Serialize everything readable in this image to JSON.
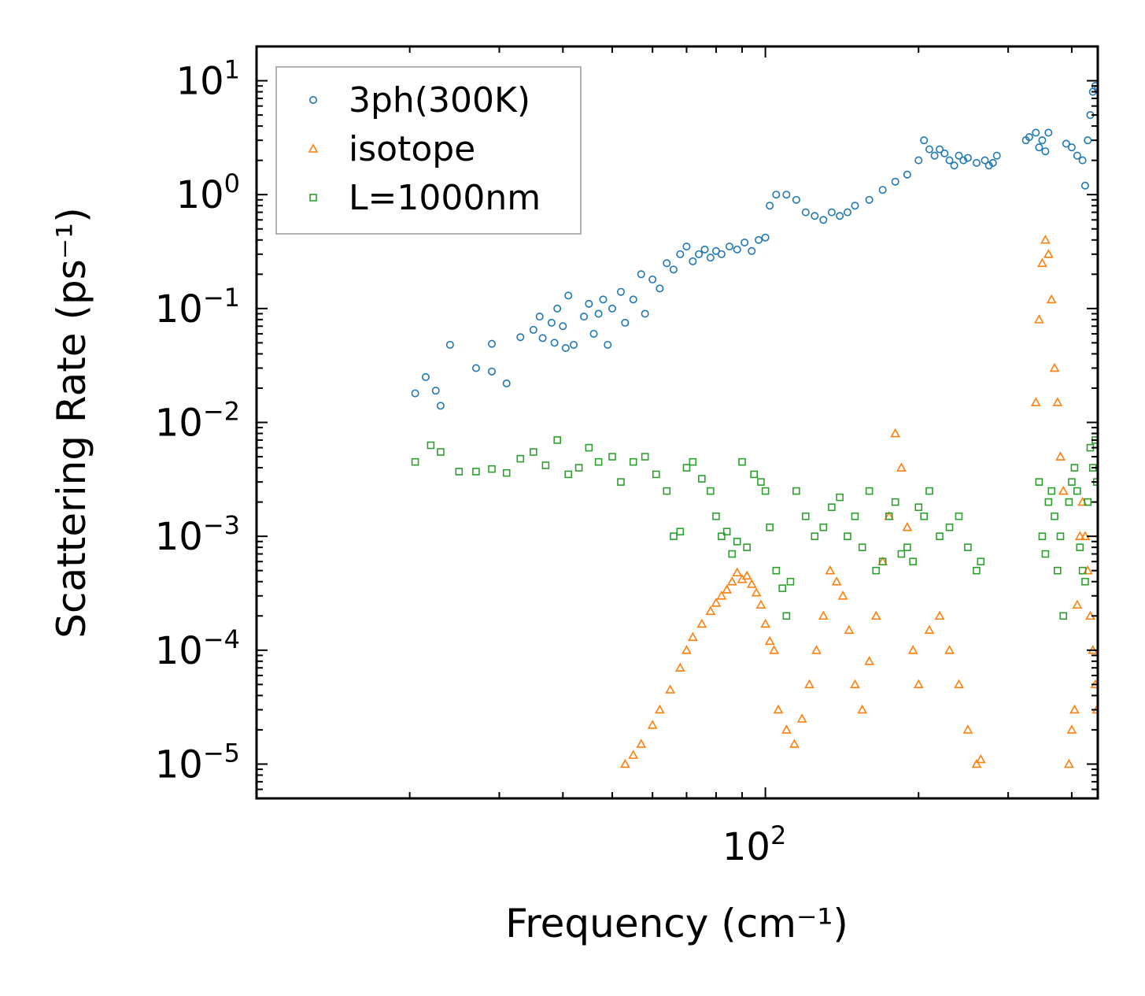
{
  "chart_data": {
    "type": "scatter",
    "title": "",
    "xlabel": "Frequency (cm⁻¹)",
    "ylabel": "Scattering Rate (ps⁻¹)",
    "xscale": "log",
    "yscale": "log",
    "xlim": [
      10,
      450
    ],
    "ylim": [
      5e-06,
      20
    ],
    "x_tick_labels": [
      {
        "value": 100,
        "base": "10",
        "exp": "2"
      }
    ],
    "y_tick_labels": [
      {
        "value": 10,
        "base": "10",
        "exp": "1"
      },
      {
        "value": 1,
        "base": "10",
        "exp": "0"
      },
      {
        "value": 0.1,
        "base": "10",
        "exp": "−1"
      },
      {
        "value": 0.01,
        "base": "10",
        "exp": "−2"
      },
      {
        "value": 0.001,
        "base": "10",
        "exp": "−3"
      },
      {
        "value": 0.0001,
        "base": "10",
        "exp": "−4"
      },
      {
        "value": 1e-05,
        "base": "10",
        "exp": "−5"
      }
    ],
    "legend_position": "top-left",
    "series": [
      {
        "name": "3ph(300K)",
        "marker": "circle",
        "color": "#1f77b4",
        "points": [
          [
            20.5,
            0.018
          ],
          [
            21.5,
            0.025
          ],
          [
            22.5,
            0.019
          ],
          [
            23,
            0.014
          ],
          [
            24,
            0.048
          ],
          [
            27,
            0.03
          ],
          [
            29,
            0.049
          ],
          [
            29,
            0.028
          ],
          [
            31,
            0.022
          ],
          [
            33,
            0.056
          ],
          [
            35,
            0.065
          ],
          [
            36,
            0.085
          ],
          [
            36.5,
            0.055
          ],
          [
            38,
            0.075
          ],
          [
            38.5,
            0.05
          ],
          [
            39,
            0.1
          ],
          [
            40,
            0.07
          ],
          [
            40.5,
            0.045
          ],
          [
            41,
            0.13
          ],
          [
            42,
            0.048
          ],
          [
            44,
            0.085
          ],
          [
            45,
            0.11
          ],
          [
            46,
            0.06
          ],
          [
            47,
            0.09
          ],
          [
            48,
            0.12
          ],
          [
            49,
            0.048
          ],
          [
            50,
            0.1
          ],
          [
            52,
            0.14
          ],
          [
            53,
            0.075
          ],
          [
            55,
            0.12
          ],
          [
            57,
            0.2
          ],
          [
            58,
            0.09
          ],
          [
            60,
            0.18
          ],
          [
            62,
            0.15
          ],
          [
            64,
            0.25
          ],
          [
            66,
            0.22
          ],
          [
            68,
            0.3
          ],
          [
            70,
            0.35
          ],
          [
            72,
            0.26
          ],
          [
            74,
            0.3
          ],
          [
            76,
            0.33
          ],
          [
            78,
            0.28
          ],
          [
            80,
            0.32
          ],
          [
            82,
            0.3
          ],
          [
            85,
            0.35
          ],
          [
            88,
            0.33
          ],
          [
            91,
            0.38
          ],
          [
            94,
            0.32
          ],
          [
            97,
            0.4
          ],
          [
            100,
            0.42
          ],
          [
            102,
            0.8
          ],
          [
            105,
            1.0
          ],
          [
            110,
            1.0
          ],
          [
            115,
            0.9
          ],
          [
            120,
            0.7
          ],
          [
            125,
            0.65
          ],
          [
            130,
            0.6
          ],
          [
            135,
            0.7
          ],
          [
            140,
            0.65
          ],
          [
            145,
            0.7
          ],
          [
            150,
            0.8
          ],
          [
            160,
            0.9
          ],
          [
            170,
            1.1
          ],
          [
            180,
            1.3
          ],
          [
            190,
            1.5
          ],
          [
            200,
            2.0
          ],
          [
            205,
            3.0
          ],
          [
            210,
            2.5
          ],
          [
            215,
            2.2
          ],
          [
            220,
            2.5
          ],
          [
            225,
            2.3
          ],
          [
            230,
            2.0
          ],
          [
            235,
            1.8
          ],
          [
            240,
            2.2
          ],
          [
            245,
            2.0
          ],
          [
            250,
            2.1
          ],
          [
            260,
            1.9
          ],
          [
            270,
            2.0
          ],
          [
            275,
            1.8
          ],
          [
            280,
            1.9
          ],
          [
            285,
            2.2
          ],
          [
            325,
            3.0
          ],
          [
            330,
            3.2
          ],
          [
            340,
            3.5
          ],
          [
            345,
            2.6
          ],
          [
            350,
            3.0
          ],
          [
            355,
            2.4
          ],
          [
            360,
            3.5
          ],
          [
            390,
            2.8
          ],
          [
            400,
            2.6
          ],
          [
            410,
            2.2
          ],
          [
            420,
            2.0
          ],
          [
            425,
            1.2
          ],
          [
            430,
            3.0
          ],
          [
            435,
            5.0
          ],
          [
            440,
            8.0
          ],
          [
            445,
            9.0
          ],
          [
            450,
            8.5
          ]
        ]
      },
      {
        "name": "isotope",
        "marker": "triangle",
        "color": "#ff7f0e",
        "points": [
          [
            53,
            1e-05
          ],
          [
            55,
            1.2e-05
          ],
          [
            57,
            1.5e-05
          ],
          [
            60,
            2.2e-05
          ],
          [
            62,
            3e-05
          ],
          [
            65,
            4.5e-05
          ],
          [
            68,
            7e-05
          ],
          [
            70,
            0.0001
          ],
          [
            72,
            0.00013
          ],
          [
            75,
            0.00017
          ],
          [
            78,
            0.00022
          ],
          [
            80,
            0.00026
          ],
          [
            82,
            0.0003
          ],
          [
            84,
            0.00034
          ],
          [
            86,
            0.0004
          ],
          [
            88,
            0.00048
          ],
          [
            90,
            0.00042
          ],
          [
            92,
            0.00045
          ],
          [
            94,
            0.00038
          ],
          [
            96,
            0.00032
          ],
          [
            98,
            0.00025
          ],
          [
            100,
            0.00017
          ],
          [
            102,
            0.00012
          ],
          [
            104,
            0.0001
          ],
          [
            106,
            3e-05
          ],
          [
            110,
            2e-05
          ],
          [
            114,
            1.5e-05
          ],
          [
            118,
            2.5e-05
          ],
          [
            122,
            5e-05
          ],
          [
            126,
            0.0001
          ],
          [
            130,
            0.0002
          ],
          [
            134,
            0.0005
          ],
          [
            138,
            0.0004
          ],
          [
            142,
            0.0003
          ],
          [
            146,
            0.00015
          ],
          [
            150,
            5e-05
          ],
          [
            155,
            3e-05
          ],
          [
            160,
            8e-05
          ],
          [
            165,
            0.0002
          ],
          [
            170,
            0.0006
          ],
          [
            175,
            0.0015
          ],
          [
            180,
            0.008
          ],
          [
            185,
            0.004
          ],
          [
            190,
            0.0012
          ],
          [
            195,
            0.0001
          ],
          [
            200,
            5e-05
          ],
          [
            210,
            0.00015
          ],
          [
            220,
            0.0002
          ],
          [
            230,
            0.0001
          ],
          [
            240,
            5e-05
          ],
          [
            250,
            2e-05
          ],
          [
            260,
            1e-05
          ],
          [
            265,
            1.1e-05
          ],
          [
            340,
            0.015
          ],
          [
            345,
            0.08
          ],
          [
            350,
            0.25
          ],
          [
            355,
            0.4
          ],
          [
            360,
            0.3
          ],
          [
            365,
            0.12
          ],
          [
            370,
            0.03
          ],
          [
            375,
            0.015
          ],
          [
            380,
            0.005
          ],
          [
            385,
            0.0025
          ],
          [
            395,
            1e-05
          ],
          [
            400,
            2e-05
          ],
          [
            405,
            3e-05
          ],
          [
            410,
            0.00025
          ],
          [
            415,
            0.001
          ],
          [
            420,
            0.002
          ],
          [
            425,
            0.001
          ],
          [
            430,
            0.0005
          ],
          [
            435,
            0.0002
          ],
          [
            440,
            0.0001
          ],
          [
            445,
            5e-05
          ],
          [
            448,
            3e-05
          ]
        ]
      },
      {
        "name": "L=1000nm",
        "marker": "square",
        "color": "#2ca02c",
        "points": [
          [
            20.5,
            0.0045
          ],
          [
            22,
            0.0063
          ],
          [
            23,
            0.0055
          ],
          [
            25,
            0.0037
          ],
          [
            27,
            0.0037
          ],
          [
            29,
            0.0039
          ],
          [
            31,
            0.0036
          ],
          [
            33,
            0.0048
          ],
          [
            35,
            0.0055
          ],
          [
            37,
            0.0042
          ],
          [
            39,
            0.007
          ],
          [
            41,
            0.0035
          ],
          [
            43,
            0.004
          ],
          [
            45,
            0.006
          ],
          [
            47,
            0.0045
          ],
          [
            50,
            0.005
          ],
          [
            52,
            0.003
          ],
          [
            55,
            0.0045
          ],
          [
            58,
            0.005
          ],
          [
            61,
            0.0035
          ],
          [
            64,
            0.0025
          ],
          [
            66,
            0.001
          ],
          [
            68,
            0.0011
          ],
          [
            70,
            0.004
          ],
          [
            72,
            0.0045
          ],
          [
            75,
            0.0032
          ],
          [
            78,
            0.0025
          ],
          [
            80,
            0.0015
          ],
          [
            82,
            0.001
          ],
          [
            84,
            0.0011
          ],
          [
            86,
            0.0007
          ],
          [
            88,
            0.0009
          ],
          [
            90,
            0.0045
          ],
          [
            92,
            0.0008
          ],
          [
            95,
            0.0035
          ],
          [
            98,
            0.003
          ],
          [
            100,
            0.0025
          ],
          [
            102,
            0.0012
          ],
          [
            105,
            0.0005
          ],
          [
            108,
            0.00035
          ],
          [
            110,
            0.0002
          ],
          [
            112,
            0.0004
          ],
          [
            115,
            0.0025
          ],
          [
            120,
            0.0015
          ],
          [
            125,
            0.001
          ],
          [
            130,
            0.0012
          ],
          [
            135,
            0.0018
          ],
          [
            140,
            0.0022
          ],
          [
            145,
            0.001
          ],
          [
            150,
            0.0015
          ],
          [
            155,
            0.0008
          ],
          [
            160,
            0.0025
          ],
          [
            165,
            0.0005
          ],
          [
            170,
            0.0006
          ],
          [
            175,
            0.0015
          ],
          [
            180,
            0.002
          ],
          [
            185,
            0.0007
          ],
          [
            190,
            0.0008
          ],
          [
            195,
            0.0006
          ],
          [
            200,
            0.0018
          ],
          [
            205,
            0.0015
          ],
          [
            210,
            0.0025
          ],
          [
            220,
            0.001
          ],
          [
            230,
            0.0012
          ],
          [
            240,
            0.0015
          ],
          [
            250,
            0.0008
          ],
          [
            260,
            0.0005
          ],
          [
            265,
            0.0006
          ],
          [
            345,
            0.003
          ],
          [
            350,
            0.001
          ],
          [
            355,
            0.0007
          ],
          [
            360,
            0.002
          ],
          [
            365,
            0.0025
          ],
          [
            370,
            0.0015
          ],
          [
            375,
            0.0005
          ],
          [
            380,
            0.001
          ],
          [
            385,
            0.0002
          ],
          [
            395,
            0.002
          ],
          [
            400,
            0.003
          ],
          [
            405,
            0.004
          ],
          [
            410,
            0.0025
          ],
          [
            415,
            0.0008
          ],
          [
            420,
            0.0005
          ],
          [
            425,
            0.0004
          ],
          [
            430,
            0.002
          ],
          [
            435,
            0.006
          ],
          [
            440,
            0.004
          ],
          [
            445,
            0.007
          ],
          [
            448,
            0.003
          ]
        ]
      }
    ]
  }
}
